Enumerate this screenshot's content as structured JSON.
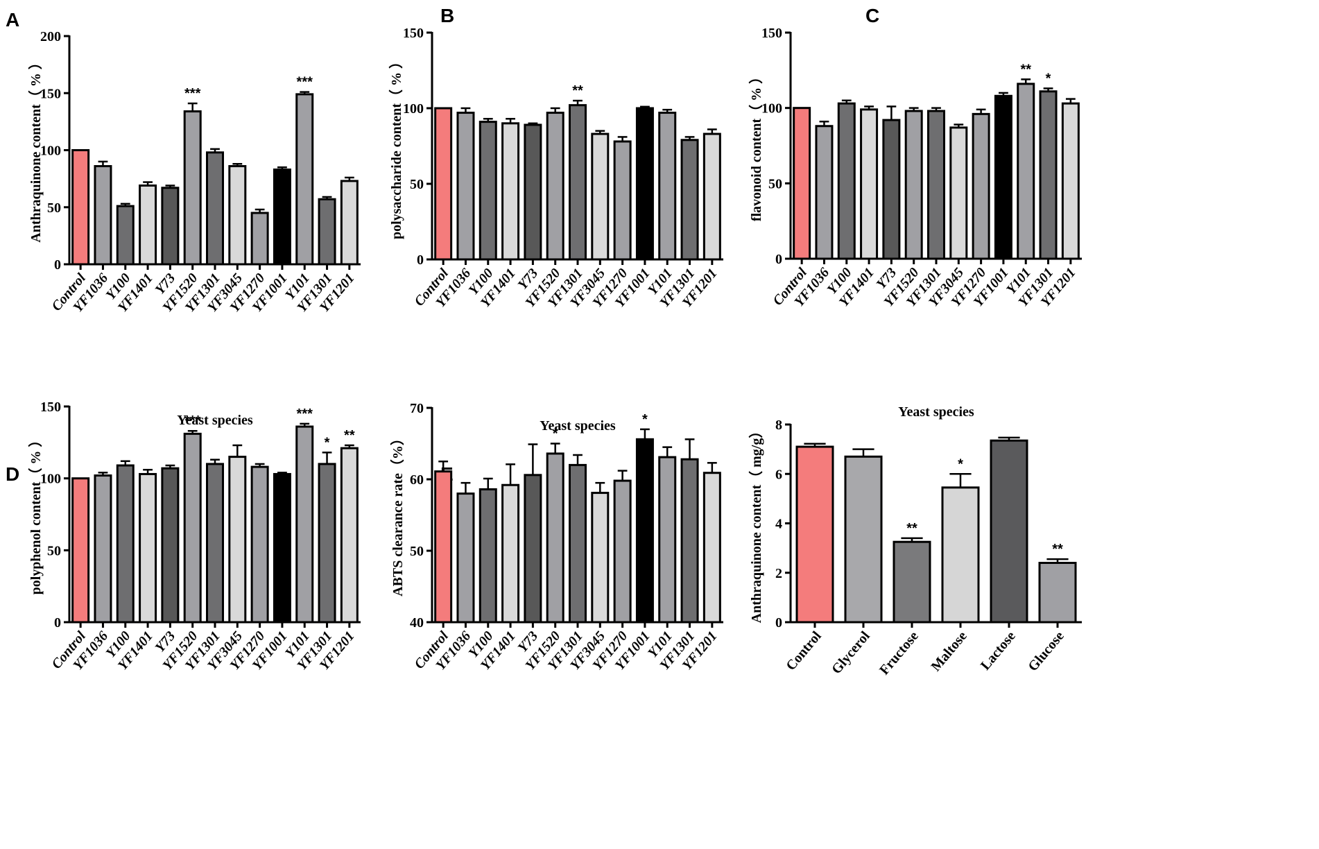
{
  "colors": {
    "control": "#f47c7c",
    "grey_mid": "#a0a0a4",
    "grey_dark": "#6e6e70",
    "grey_light": "#d9d9d9",
    "grey_darker": "#585858",
    "black": "#000000",
    "F_glycerol": "#a8a8ab",
    "F_fructose": "#7a7a7c",
    "F_maltose": "#d6d6d6",
    "F_lactose": "#5a5a5c",
    "F_glucose": "#a0a0a4"
  },
  "chart_data": [
    {
      "panel": "A",
      "type": "bar",
      "title": "",
      "xlabel": "Yeast species",
      "ylabel": "Anthraquinone content（ % ）",
      "ylim": [
        0,
        200
      ],
      "yticks": [
        0,
        50,
        100,
        150,
        200
      ],
      "categories": [
        "Control",
        "YF1036",
        "Y100",
        "YF1401",
        "Y73",
        "YF1520",
        "YF1301",
        "YF3045",
        "YF1270",
        "YF1001",
        "Y101",
        "YF1301",
        "YF1201"
      ],
      "values": [
        100,
        86,
        51,
        69,
        67,
        134,
        98,
        86,
        45,
        83,
        149,
        57,
        73
      ],
      "errors": [
        0,
        4,
        2,
        3,
        2,
        7,
        3,
        2,
        3,
        2,
        2,
        2,
        3
      ],
      "significance": [
        "",
        "",
        "",
        "",
        "",
        "***",
        "",
        "",
        "",
        "",
        "***",
        "",
        ""
      ]
    },
    {
      "panel": "B",
      "type": "bar",
      "title": "",
      "xlabel": "Yeast species",
      "ylabel": "polysaccharide content（ % ）",
      "ylim": [
        0,
        150
      ],
      "yticks": [
        0,
        50,
        100,
        150
      ],
      "categories": [
        "Control",
        "YF1036",
        "Y100",
        "YF1401",
        "Y73",
        "YF1520",
        "YF1301",
        "YF3045",
        "YF1270",
        "YF1001",
        "Y101",
        "YF1301",
        "YF1201"
      ],
      "values": [
        100,
        97,
        91,
        90,
        89,
        97,
        102,
        83,
        78,
        100,
        97,
        79,
        83
      ],
      "errors": [
        0,
        3,
        2,
        3,
        1,
        3,
        3,
        2,
        3,
        1,
        2,
        2,
        3
      ],
      "significance": [
        "",
        "",
        "",
        "",
        "",
        "",
        "**",
        "",
        "",
        "",
        "",
        "",
        ""
      ]
    },
    {
      "panel": "C",
      "type": "bar",
      "title": "",
      "xlabel": "Yeast species",
      "ylabel": "flavonoid content（ % ）",
      "ylim": [
        0,
        150
      ],
      "yticks": [
        0,
        50,
        100,
        150
      ],
      "categories": [
        "Control",
        "YF1036",
        "Y100",
        "YF1401",
        "Y73",
        "YF1520",
        "YF1301",
        "YF3045",
        "YF1270",
        "YF1001",
        "Y101",
        "YF1301",
        "YF1201"
      ],
      "values": [
        100,
        88,
        103,
        99,
        92,
        98,
        98,
        87,
        96,
        108,
        116,
        111,
        103
      ],
      "errors": [
        0,
        3,
        2,
        2,
        9,
        2,
        2,
        2,
        3,
        2,
        3,
        2,
        3
      ],
      "significance": [
        "",
        "",
        "",
        "",
        "",
        "",
        "",
        "",
        "",
        "",
        "**",
        "*",
        ""
      ]
    },
    {
      "panel": "D",
      "type": "bar",
      "title": "",
      "xlabel": "",
      "ylabel": "polyphenol content（ % ）",
      "ylim": [
        0,
        150
      ],
      "yticks": [
        0,
        50,
        100,
        150
      ],
      "categories": [
        "Control",
        "YF1036",
        "Y100",
        "YF1401",
        "Y73",
        "YF1520",
        "YF1301",
        "YF3045",
        "YF1270",
        "YF1001",
        "Y101",
        "YF1301",
        "YF1201"
      ],
      "values": [
        100,
        102,
        109,
        103,
        107,
        131,
        110,
        115,
        108,
        103,
        136,
        110,
        121
      ],
      "errors": [
        0,
        2,
        3,
        3,
        2,
        2,
        3,
        8,
        2,
        1,
        2,
        8,
        2
      ],
      "significance": [
        "",
        "",
        "",
        "",
        "",
        "***",
        "",
        "",
        "",
        "",
        "***",
        "*",
        "**"
      ]
    },
    {
      "panel": "E",
      "type": "bar",
      "title": "",
      "xlabel": "",
      "ylabel": "ABTS clearance rate（%）",
      "ylim": [
        40,
        70
      ],
      "yticks": [
        40,
        50,
        60,
        70
      ],
      "categories": [
        "Control",
        "YF1036",
        "Y100",
        "YF1401",
        "Y73",
        "YF1520",
        "YF1301",
        "YF3045",
        "YF1270",
        "YF1001",
        "Y101",
        "YF1301",
        "YF1201"
      ],
      "values": [
        61.1,
        58.0,
        58.6,
        59.2,
        60.6,
        63.6,
        62.0,
        58.1,
        59.8,
        65.6,
        63.1,
        62.8,
        60.9
      ],
      "errors": [
        1.4,
        1.5,
        1.5,
        2.9,
        4.3,
        1.4,
        1.4,
        1.4,
        1.4,
        1.4,
        1.4,
        2.8,
        1.4
      ],
      "significance": [
        "",
        "",
        "",
        "",
        "",
        "*",
        "",
        "",
        "",
        "*",
        "",
        "",
        ""
      ]
    },
    {
      "panel": "F",
      "type": "bar",
      "title": "",
      "xlabel": "",
      "ylabel": "Anthraquinone content（ mg/g）",
      "ylim": [
        0,
        8
      ],
      "yticks": [
        0,
        2,
        4,
        6,
        8
      ],
      "categories": [
        "Control",
        "Glycerol",
        "Fructose",
        "Maltose",
        "Lactose",
        "Glucose"
      ],
      "values": [
        7.1,
        6.7,
        3.25,
        5.45,
        7.35,
        2.4
      ],
      "errors": [
        0.12,
        0.3,
        0.15,
        0.55,
        0.12,
        0.15
      ],
      "significance": [
        "",
        "",
        "**",
        "*",
        "",
        "**"
      ]
    }
  ]
}
